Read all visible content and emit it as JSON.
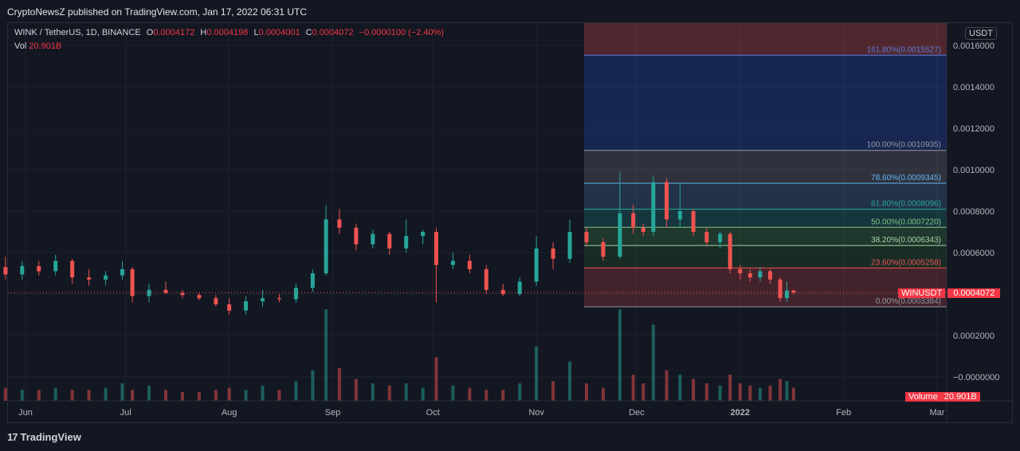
{
  "header": {
    "published_text": "CryptoNewsZ published on TradingView.com, Jan 17, 2022 06:31 UTC"
  },
  "legend": {
    "symbol": "WINK / TetherUS, 1D, BINANCE",
    "open_label": "O",
    "open": "0.0004172",
    "high_label": "H",
    "high": "0.0004198",
    "low_label": "L",
    "low": "0.0004001",
    "close_label": "C",
    "close": "0.0004072",
    "change": "−0.0000100 (−2.40%)",
    "vol_label": "Vol",
    "vol_value": "20.901B"
  },
  "price_axis": {
    "unit": "USDT",
    "ticks": [
      "0.0016000",
      "0.0014000",
      "0.0012000",
      "0.0010000",
      "0.0008000",
      "0.0006000",
      "0.0004000",
      "0.0002000",
      "−0.0000000"
    ],
    "last_price_symbol": "WINUSDT",
    "last_price": "0.0004072",
    "volume_label": "Volume",
    "volume_value": "20.901B"
  },
  "time_axis": {
    "ticks": [
      "Jun",
      "Jul",
      "Aug",
      "Sep",
      "Oct",
      "Nov",
      "Dec",
      "2022",
      "Feb",
      "Mar"
    ]
  },
  "footer": {
    "brand": "TradingView",
    "brand_mark": "17"
  },
  "colors": {
    "background": "#131722",
    "up": "#26a69a",
    "down": "#ef5350",
    "grid": "#1e222d",
    "text": "#b2b5be",
    "accent_red": "#f23645"
  },
  "chart_data": {
    "type": "candlestick",
    "title": "WINK / TetherUS, 1D, BINANCE",
    "ylim": [
      -0.0,
      0.0016
    ],
    "candles": [
      {
        "date": "2021-05-26",
        "o": 0.00053,
        "h": 0.00058,
        "l": 0.00047,
        "c": 0.000495
      },
      {
        "date": "2021-05-31",
        "o": 0.000495,
        "h": 0.00056,
        "l": 0.00047,
        "c": 0.000535
      },
      {
        "date": "2021-06-05",
        "o": 0.000535,
        "h": 0.00056,
        "l": 0.00049,
        "c": 0.00051
      },
      {
        "date": "2021-06-10",
        "o": 0.00051,
        "h": 0.00059,
        "l": 0.00049,
        "c": 0.00056
      },
      {
        "date": "2021-06-15",
        "o": 0.00056,
        "h": 0.00057,
        "l": 0.00045,
        "c": 0.00048
      },
      {
        "date": "2021-06-20",
        "o": 0.00048,
        "h": 0.00052,
        "l": 0.00044,
        "c": 0.00047
      },
      {
        "date": "2021-06-25",
        "o": 0.00047,
        "h": 0.00051,
        "l": 0.00044,
        "c": 0.00049
      },
      {
        "date": "2021-06-30",
        "o": 0.00049,
        "h": 0.00056,
        "l": 0.00047,
        "c": 0.00052
      },
      {
        "date": "2021-07-03",
        "o": 0.00052,
        "h": 0.00053,
        "l": 0.00036,
        "c": 0.00039
      },
      {
        "date": "2021-07-08",
        "o": 0.00039,
        "h": 0.00045,
        "l": 0.00036,
        "c": 0.00042
      },
      {
        "date": "2021-07-13",
        "o": 0.00042,
        "h": 0.00046,
        "l": 0.0004,
        "c": 0.000405
      },
      {
        "date": "2021-07-18",
        "o": 0.000405,
        "h": 0.00042,
        "l": 0.00038,
        "c": 0.000395
      },
      {
        "date": "2021-07-23",
        "o": 0.000395,
        "h": 0.000405,
        "l": 0.00037,
        "c": 0.00038
      },
      {
        "date": "2021-07-28",
        "o": 0.00038,
        "h": 0.000395,
        "l": 0.00034,
        "c": 0.00035
      },
      {
        "date": "2021-08-01",
        "o": 0.00035,
        "h": 0.00038,
        "l": 0.0003,
        "c": 0.00032
      },
      {
        "date": "2021-08-06",
        "o": 0.00032,
        "h": 0.00039,
        "l": 0.0003,
        "c": 0.000365
      },
      {
        "date": "2021-08-11",
        "o": 0.000365,
        "h": 0.00042,
        "l": 0.00034,
        "c": 0.00038
      },
      {
        "date": "2021-08-16",
        "o": 0.00038,
        "h": 0.0004,
        "l": 0.00036,
        "c": 0.000375
      },
      {
        "date": "2021-08-21",
        "o": 0.000375,
        "h": 0.00045,
        "l": 0.00036,
        "c": 0.00043
      },
      {
        "date": "2021-08-26",
        "o": 0.00043,
        "h": 0.00052,
        "l": 0.00041,
        "c": 0.0005
      },
      {
        "date": "2021-08-30",
        "o": 0.0005,
        "h": 0.00083,
        "l": 0.00049,
        "c": 0.00076
      },
      {
        "date": "2021-09-03",
        "o": 0.00076,
        "h": 0.00081,
        "l": 0.00069,
        "c": 0.00072
      },
      {
        "date": "2021-09-08",
        "o": 0.00072,
        "h": 0.00074,
        "l": 0.00061,
        "c": 0.00064
      },
      {
        "date": "2021-09-13",
        "o": 0.00064,
        "h": 0.00071,
        "l": 0.00062,
        "c": 0.00069
      },
      {
        "date": "2021-09-18",
        "o": 0.00069,
        "h": 0.0007,
        "l": 0.00059,
        "c": 0.00062
      },
      {
        "date": "2021-09-23",
        "o": 0.00062,
        "h": 0.00076,
        "l": 0.0006,
        "c": 0.00068
      },
      {
        "date": "2021-09-28",
        "o": 0.00068,
        "h": 0.00071,
        "l": 0.00064,
        "c": 0.0007
      },
      {
        "date": "2021-10-02",
        "o": 0.0007,
        "h": 0.00072,
        "l": 0.00036,
        "c": 0.00054
      },
      {
        "date": "2021-10-07",
        "o": 0.00054,
        "h": 0.0006,
        "l": 0.00052,
        "c": 0.00056
      },
      {
        "date": "2021-10-12",
        "o": 0.00056,
        "h": 0.00059,
        "l": 0.0005,
        "c": 0.00052
      },
      {
        "date": "2021-10-17",
        "o": 0.00052,
        "h": 0.00054,
        "l": 0.0004,
        "c": 0.00042
      },
      {
        "date": "2021-10-22",
        "o": 0.00042,
        "h": 0.00045,
        "l": 0.00039,
        "c": 0.0004
      },
      {
        "date": "2021-10-27",
        "o": 0.0004,
        "h": 0.00048,
        "l": 0.00039,
        "c": 0.00046
      },
      {
        "date": "2021-11-01",
        "o": 0.00046,
        "h": 0.00068,
        "l": 0.00044,
        "c": 0.00062
      },
      {
        "date": "2021-11-06",
        "o": 0.00062,
        "h": 0.00065,
        "l": 0.00052,
        "c": 0.00057
      },
      {
        "date": "2021-11-11",
        "o": 0.00057,
        "h": 0.00076,
        "l": 0.00055,
        "c": 0.0007
      },
      {
        "date": "2021-11-16",
        "o": 0.0007,
        "h": 0.00072,
        "l": 0.00063,
        "c": 0.00065
      },
      {
        "date": "2021-11-21",
        "o": 0.00065,
        "h": 0.00067,
        "l": 0.00056,
        "c": 0.00058
      },
      {
        "date": "2021-11-26",
        "o": 0.00058,
        "h": 0.00099,
        "l": 0.00057,
        "c": 0.00079
      },
      {
        "date": "2021-11-30",
        "o": 0.00079,
        "h": 0.00083,
        "l": 0.00069,
        "c": 0.00072
      },
      {
        "date": "2021-12-03",
        "o": 0.00072,
        "h": 0.00074,
        "l": 0.00068,
        "c": 0.0007
      },
      {
        "date": "2021-12-06",
        "o": 0.0007,
        "h": 0.00097,
        "l": 0.00068,
        "c": 0.00094
      },
      {
        "date": "2021-12-10",
        "o": 0.00094,
        "h": 0.00096,
        "l": 0.00072,
        "c": 0.00076
      },
      {
        "date": "2021-12-14",
        "o": 0.00076,
        "h": 0.00094,
        "l": 0.00072,
        "c": 0.0008
      },
      {
        "date": "2021-12-18",
        "o": 0.0008,
        "h": 0.00081,
        "l": 0.00068,
        "c": 0.0007
      },
      {
        "date": "2021-12-22",
        "o": 0.0007,
        "h": 0.00072,
        "l": 0.00063,
        "c": 0.00065
      },
      {
        "date": "2021-12-26",
        "o": 0.00065,
        "h": 0.0007,
        "l": 0.00062,
        "c": 0.00069
      },
      {
        "date": "2021-12-29",
        "o": 0.00069,
        "h": 0.0007,
        "l": 0.0005,
        "c": 0.00052
      },
      {
        "date": "2022-01-01",
        "o": 0.00052,
        "h": 0.00054,
        "l": 0.00047,
        "c": 0.0005
      },
      {
        "date": "2022-01-04",
        "o": 0.0005,
        "h": 0.00052,
        "l": 0.00046,
        "c": 0.00048
      },
      {
        "date": "2022-01-07",
        "o": 0.00048,
        "h": 0.00053,
        "l": 0.00046,
        "c": 0.00051
      },
      {
        "date": "2022-01-10",
        "o": 0.00051,
        "h": 0.00052,
        "l": 0.00045,
        "c": 0.00047
      },
      {
        "date": "2022-01-13",
        "o": 0.00047,
        "h": 0.00048,
        "l": 0.00036,
        "c": 0.00038
      },
      {
        "date": "2022-01-15",
        "o": 0.00038,
        "h": 0.00046,
        "l": 0.00036,
        "c": 0.000417
      },
      {
        "date": "2022-01-17",
        "o": 0.0004172,
        "h": 0.0004198,
        "l": 0.0004001,
        "c": 0.0004072
      }
    ],
    "volume": [
      0.06,
      0.05,
      0.05,
      0.06,
      0.05,
      0.05,
      0.06,
      0.08,
      0.05,
      0.07,
      0.05,
      0.04,
      0.04,
      0.05,
      0.06,
      0.05,
      0.07,
      0.05,
      0.09,
      0.14,
      0.42,
      0.15,
      0.1,
      0.08,
      0.07,
      0.08,
      0.06,
      0.2,
      0.07,
      0.06,
      0.05,
      0.05,
      0.08,
      0.25,
      0.09,
      0.18,
      0.08,
      0.06,
      0.42,
      0.12,
      0.08,
      0.35,
      0.14,
      0.12,
      0.1,
      0.08,
      0.07,
      0.12,
      0.08,
      0.07,
      0.06,
      0.07,
      0.1,
      0.09,
      0.06
    ],
    "fibonacci_levels": [
      {
        "label": "161.80%(0.0015527)",
        "value": 0.0015527,
        "color": "#5b7cde"
      },
      {
        "label": "100.00%(0.0010935)",
        "value": 0.0010935,
        "color": "#9598a1"
      },
      {
        "label": "78.60%(0.0009345)",
        "value": 0.0009345,
        "color": "#64b5f6"
      },
      {
        "label": "61.80%(0.0008096)",
        "value": 0.0008096,
        "color": "#26a69a"
      },
      {
        "label": "50.00%(0.0007220)",
        "value": 0.000722,
        "color": "#81c784"
      },
      {
        "label": "38.20%(0.0006343)",
        "value": 0.0006343,
        "color": "#a5d6a7"
      },
      {
        "label": "23.60%(0.0005258)",
        "value": 0.0005258,
        "color": "#ef5350"
      },
      {
        "label": "0.00%(0.0003384)",
        "value": 0.0003384,
        "color": "#9598a1"
      }
    ],
    "fib_top_extension": 0.00176
  }
}
